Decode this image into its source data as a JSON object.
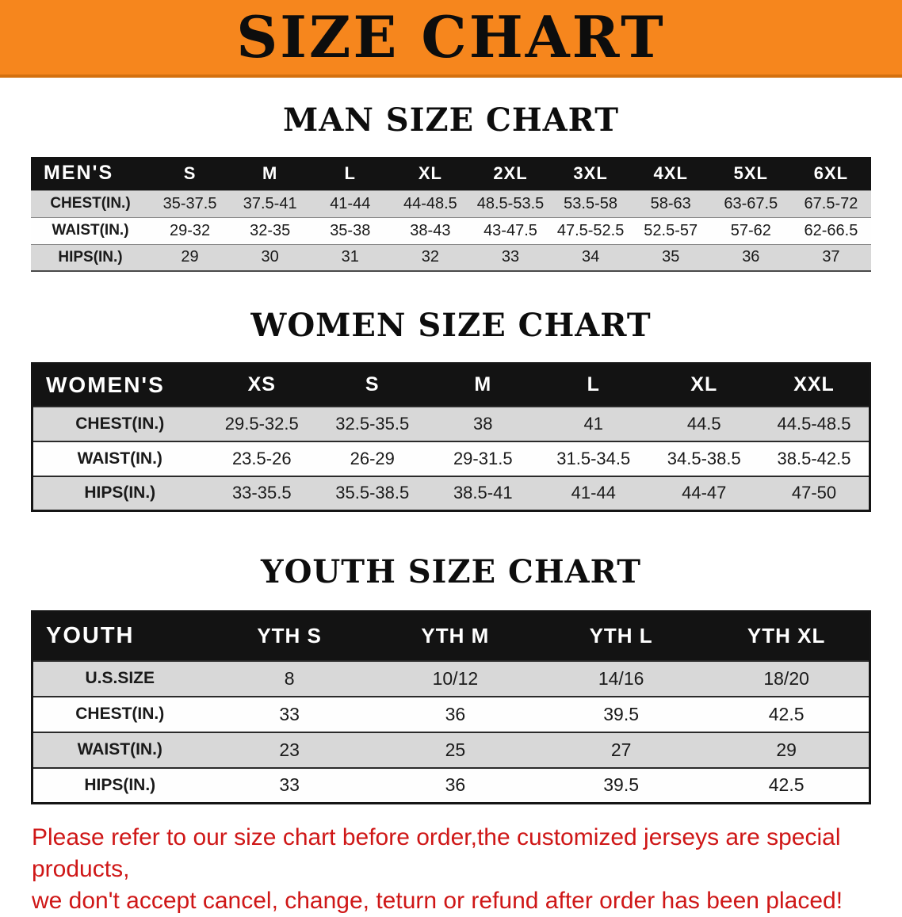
{
  "banner": {
    "title": "SIZE CHART"
  },
  "colors": {
    "banner_bg": "#f6861d",
    "table_header_bg": "#131313",
    "stripe_bg": "#d8d8d8",
    "notice_red": "#cf1717"
  },
  "sections": [
    {
      "id": "men",
      "heading": "MAN SIZE CHART",
      "table": {
        "header": [
          "MEN'S",
          "S",
          "M",
          "L",
          "XL",
          "2XL",
          "3XL",
          "4XL",
          "5XL",
          "6XL"
        ],
        "rows": [
          [
            "CHEST(IN.)",
            "35-37.5",
            "37.5-41",
            "41-44",
            "44-48.5",
            "48.5-53.5",
            "53.5-58",
            "58-63",
            "63-67.5",
            "67.5-72"
          ],
          [
            "WAIST(IN.)",
            "29-32",
            "32-35",
            "35-38",
            "38-43",
            "43-47.5",
            "47.5-52.5",
            "52.5-57",
            "57-62",
            "62-66.5"
          ],
          [
            "HIPS(IN.)",
            "29",
            "30",
            "31",
            "32",
            "33",
            "34",
            "35",
            "36",
            "37"
          ]
        ]
      }
    },
    {
      "id": "women",
      "heading": "WOMEN SIZE CHART",
      "table": {
        "header": [
          "WOMEN'S",
          "XS",
          "S",
          "M",
          "L",
          "XL",
          "XXL"
        ],
        "rows": [
          [
            "CHEST(IN.)",
            "29.5-32.5",
            "32.5-35.5",
            "38",
            "41",
            "44.5",
            "44.5-48.5"
          ],
          [
            "WAIST(IN.)",
            "23.5-26",
            "26-29",
            "29-31.5",
            "31.5-34.5",
            "34.5-38.5",
            "38.5-42.5"
          ],
          [
            "HIPS(IN.)",
            "33-35.5",
            "35.5-38.5",
            "38.5-41",
            "41-44",
            "44-47",
            "47-50"
          ]
        ]
      }
    },
    {
      "id": "youth",
      "heading": "YOUTH SIZE CHART",
      "table": {
        "header": [
          "YOUTH",
          "YTH S",
          "YTH M",
          "YTH L",
          "YTH XL"
        ],
        "rows": [
          [
            "U.S.SIZE",
            "8",
            "10/12",
            "14/16",
            "18/20"
          ],
          [
            "CHEST(IN.)",
            "33",
            "36",
            "39.5",
            "42.5"
          ],
          [
            "WAIST(IN.)",
            "23",
            "25",
            "27",
            "29"
          ],
          [
            "HIPS(IN.)",
            "33",
            "36",
            "39.5",
            "42.5"
          ]
        ]
      }
    }
  ],
  "footer": {
    "line1": "Please refer to our size chart before order,the customized jerseys are special products,",
    "line2": "we don't accept cancel, change, teturn or refund after order has been placed!"
  }
}
